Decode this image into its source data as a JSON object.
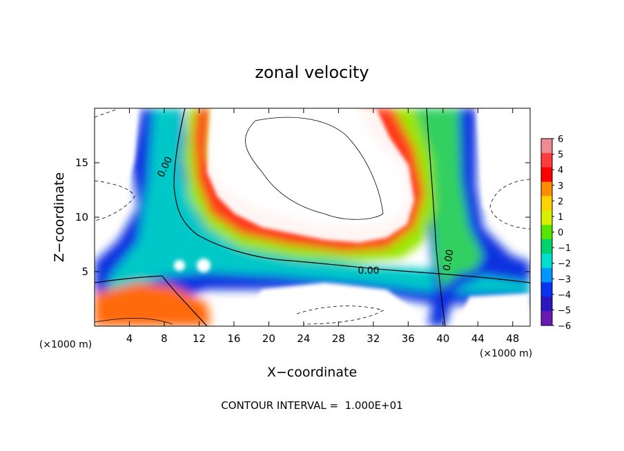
{
  "chart_data": {
    "type": "heatmap",
    "title": "zonal velocity",
    "xlabel": "X−coordinate",
    "ylabel": "Z−coordinate",
    "x_unit": "(×1000 m)",
    "y_unit": "(×1000 m)",
    "xlim": [
      0,
      50
    ],
    "ylim": [
      0,
      20
    ],
    "x_ticks": [
      4,
      8,
      12,
      16,
      20,
      24,
      28,
      32,
      36,
      40,
      44,
      48
    ],
    "x_tick_labels": [
      "4",
      "8",
      "12",
      "16",
      "20",
      "24",
      "28",
      "32",
      "36",
      "40",
      "44",
      "48"
    ],
    "y_ticks": [
      5,
      10,
      15
    ],
    "y_tick_labels": [
      "5",
      "10",
      "15"
    ],
    "colorbar": {
      "levels": [
        6,
        5,
        4,
        3,
        2,
        1,
        0,
        -1,
        -2,
        -3,
        -4,
        -5,
        -6
      ],
      "labels": [
        "6",
        "5",
        "4",
        "3",
        "2",
        "1",
        "0",
        "−1",
        "−2",
        "−3",
        "−4",
        "−5",
        "−6"
      ],
      "colors": [
        "#f08a94",
        "#ff3c3c",
        "#ff0000",
        "#ff8c00",
        "#ffd200",
        "#d7f000",
        "#55e600",
        "#00d26e",
        "#00e0d0",
        "#0096ff",
        "#0a32f0",
        "#2c16c0",
        "#6a1ab4"
      ]
    },
    "contour_labels": [
      "0.00",
      "0.00",
      "0.00"
    ],
    "contour_interval_text": "CONTOUR INTERVAL =  1.000E+01"
  }
}
